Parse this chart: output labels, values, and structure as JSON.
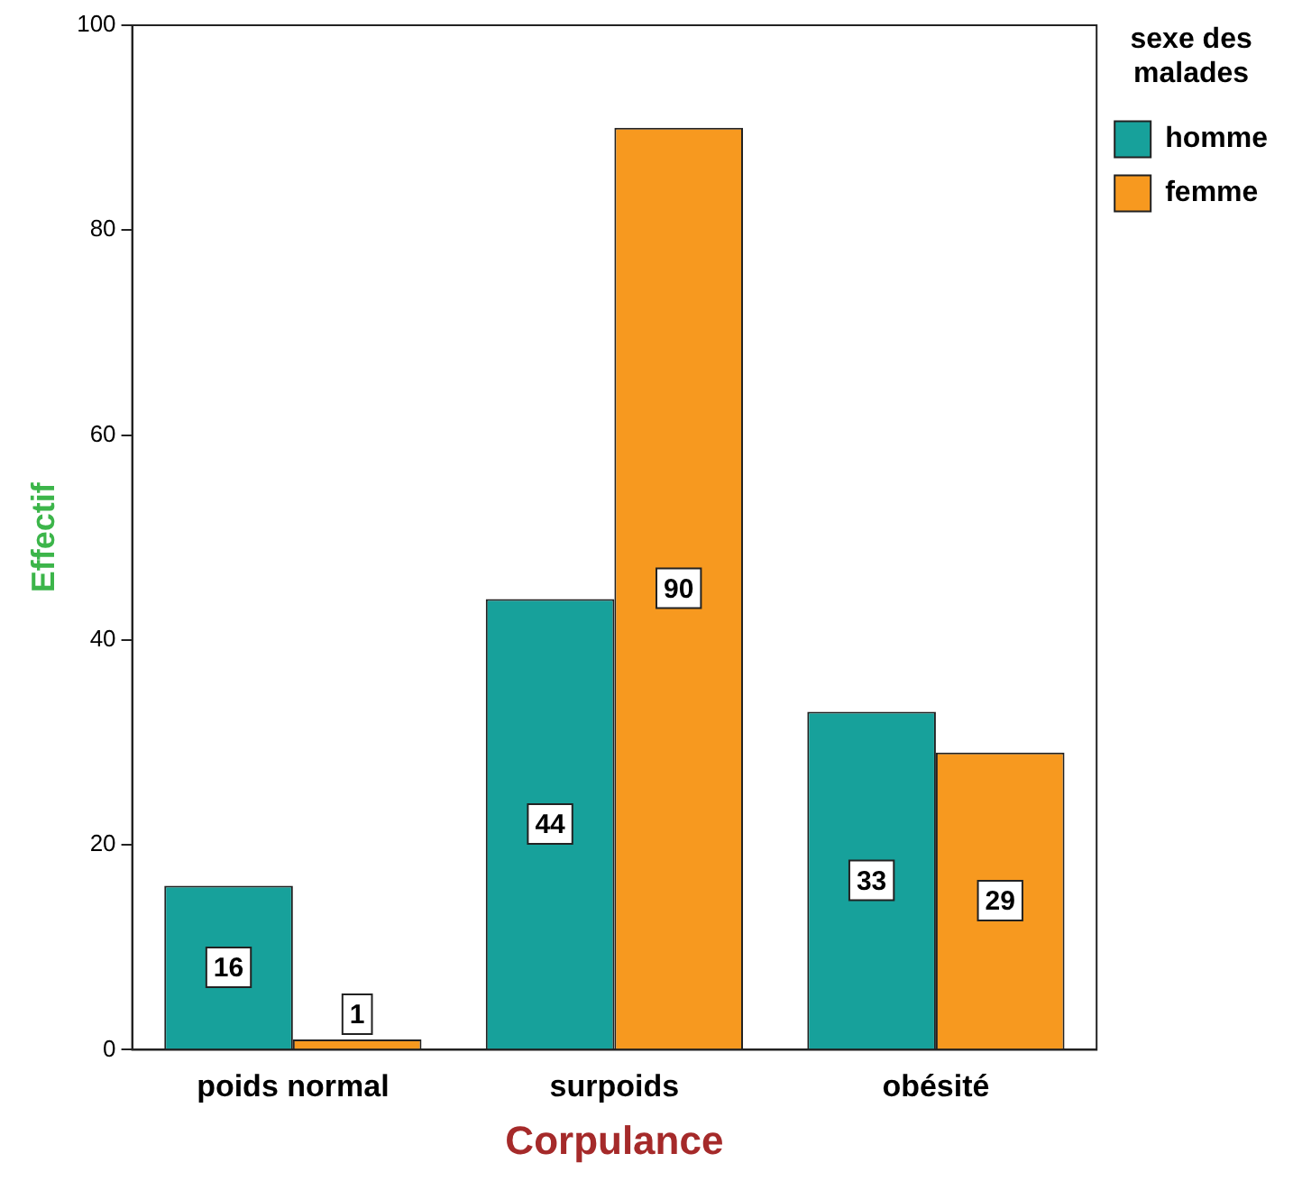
{
  "chart_data": {
    "type": "bar",
    "xlabel": "Corpulance",
    "ylabel": "Effectif",
    "legend_title": "sexe des malades",
    "categories": [
      "poids normal",
      "surpoids",
      "obésité"
    ],
    "series": [
      {
        "name": "homme",
        "color": "#17a19b",
        "values": [
          16,
          44,
          33
        ]
      },
      {
        "name": "femme",
        "color": "#f7991f",
        "values": [
          1,
          90,
          29
        ]
      }
    ],
    "ylim": [
      0,
      100
    ],
    "yticks": [
      0,
      20,
      40,
      60,
      80,
      100
    ],
    "grid": false,
    "legend": "right",
    "data_labels": true
  }
}
